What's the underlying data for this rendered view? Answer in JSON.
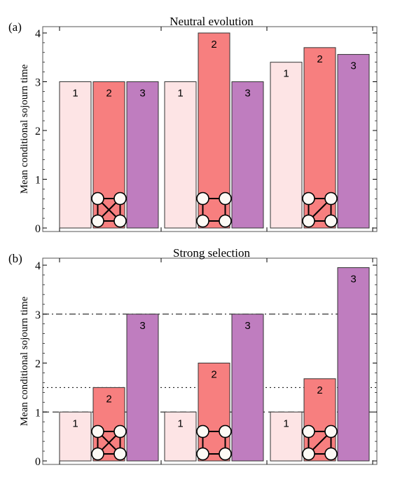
{
  "colors": {
    "bar1": "#fde4e5",
    "bar2": "#f77f7f",
    "bar3": "#bf7dbf",
    "frame": "#555555",
    "node": "#fdfaf5"
  },
  "chart_data": [
    {
      "type": "bar",
      "panel_label": "(a)",
      "title": "Neutral evolution",
      "ylabel": "Mean conditional sojourn time",
      "ylim": [
        0,
        4.1
      ],
      "yticks": [
        "0",
        "1",
        "2",
        "3",
        "4"
      ],
      "groups": [
        {
          "graph": "complete",
          "bars": [
            {
              "label": "1",
              "value": 3.0
            },
            {
              "label": "2",
              "value": 3.0
            },
            {
              "label": "3",
              "value": 3.0
            }
          ]
        },
        {
          "graph": "cycle",
          "bars": [
            {
              "label": "1",
              "value": 3.0
            },
            {
              "label": "2",
              "value": 4.0
            },
            {
              "label": "3",
              "value": 3.0
            }
          ]
        },
        {
          "graph": "cycle-with-diagonal",
          "bars": [
            {
              "label": "1",
              "value": 3.4
            },
            {
              "label": "2",
              "value": 3.7
            },
            {
              "label": "3",
              "value": 3.56
            }
          ]
        }
      ],
      "reference_lines": []
    },
    {
      "type": "bar",
      "panel_label": "(b)",
      "title": "Strong selection",
      "ylabel": "Mean conditional sojourn time",
      "ylim": [
        0,
        4.1
      ],
      "yticks": [
        "0",
        "1",
        "2",
        "3",
        "4"
      ],
      "groups": [
        {
          "graph": "complete",
          "bars": [
            {
              "label": "1",
              "value": 1.0
            },
            {
              "label": "2",
              "value": 1.5
            },
            {
              "label": "3",
              "value": 3.0
            }
          ]
        },
        {
          "graph": "cycle",
          "bars": [
            {
              "label": "1",
              "value": 1.0
            },
            {
              "label": "2",
              "value": 2.0
            },
            {
              "label": "3",
              "value": 3.0
            }
          ]
        },
        {
          "graph": "cycle-with-diagonal",
          "bars": [
            {
              "label": "1",
              "value": 1.0
            },
            {
              "label": "2",
              "value": 1.68
            },
            {
              "label": "3",
              "value": 3.95
            }
          ]
        }
      ],
      "reference_lines": [
        {
          "value": 1.0,
          "style": "dashed"
        },
        {
          "value": 1.5,
          "style": "dotted"
        },
        {
          "value": 3.0,
          "style": "dashdot"
        }
      ]
    }
  ]
}
